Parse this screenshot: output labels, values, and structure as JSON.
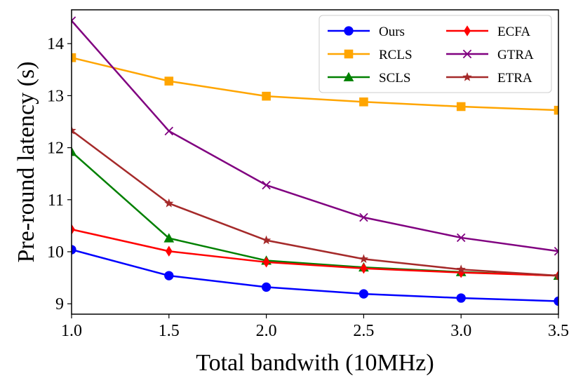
{
  "chart_data": {
    "type": "line",
    "title": "",
    "xlabel": "Total bandwith (10MHz)",
    "ylabel": "Pre-round latency (s)",
    "xlim": [
      1.0,
      3.5
    ],
    "ylim": [
      8.8,
      14.65
    ],
    "x_ticks": [
      1.0,
      1.5,
      2.0,
      2.5,
      3.0,
      3.5
    ],
    "x_tick_labels": [
      "1.0",
      "1.5",
      "2.0",
      "2.5",
      "3.0",
      "3.5"
    ],
    "y_ticks": [
      9,
      10,
      11,
      12,
      13,
      14
    ],
    "y_tick_labels": [
      "9",
      "10",
      "11",
      "12",
      "13",
      "14"
    ],
    "grid": false,
    "legend_position": "top-right",
    "x": [
      1.0,
      1.5,
      2.0,
      2.5,
      3.0,
      3.5
    ],
    "series": [
      {
        "name": "Ours",
        "color": "#0000ff",
        "marker": "circle",
        "values": [
          10.04,
          9.54,
          9.32,
          9.19,
          9.11,
          9.05
        ]
      },
      {
        "name": "RCLS",
        "color": "#ffa500",
        "marker": "square",
        "values": [
          13.73,
          13.28,
          12.99,
          12.88,
          12.79,
          12.72
        ]
      },
      {
        "name": "SCLS",
        "color": "#008000",
        "marker": "triangle",
        "values": [
          11.92,
          10.26,
          9.83,
          9.7,
          9.61,
          9.54
        ]
      },
      {
        "name": "ECFA",
        "color": "#ff0000",
        "marker": "diamond",
        "values": [
          10.43,
          10.01,
          9.8,
          9.68,
          9.6,
          9.54
        ]
      },
      {
        "name": "GTRA",
        "color": "#800080",
        "marker": "x",
        "values": [
          14.44,
          12.32,
          11.28,
          10.66,
          10.27,
          10.01
        ]
      },
      {
        "name": "ETRA",
        "color": "#a52a2a",
        "marker": "star",
        "values": [
          12.33,
          10.93,
          10.22,
          9.86,
          9.66,
          9.54
        ]
      }
    ]
  }
}
